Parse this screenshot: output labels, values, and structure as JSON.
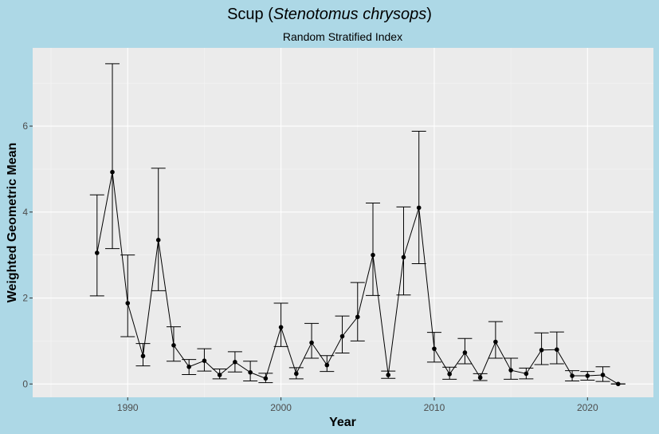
{
  "chart_data": {
    "type": "line",
    "title_main": "Scup",
    "title_species": "Stenotomus chrysops",
    "subtitle": "Random Stratified Index",
    "xlabel": "Year",
    "ylabel": "Weighted Geometric Mean",
    "xlim": [
      1983.8,
      2024.3
    ],
    "ylim": [
      -0.31,
      7.82
    ],
    "x_ticks": [
      1990,
      2000,
      2010,
      2020
    ],
    "x_tick_labels": [
      "1990",
      "2000",
      "2010",
      "2020"
    ],
    "y_ticks": [
      0,
      2,
      4,
      6
    ],
    "y_tick_labels": [
      "0",
      "2",
      "4",
      "6"
    ],
    "grid": true,
    "series": [
      {
        "name": "index",
        "points": [
          {
            "x": 1988,
            "y": 3.05,
            "lo": 2.05,
            "hi": 4.4
          },
          {
            "x": 1989,
            "y": 4.93,
            "lo": 3.15,
            "hi": 7.45
          },
          {
            "x": 1990,
            "y": 1.88,
            "lo": 1.1,
            "hi": 3.0
          },
          {
            "x": 1991,
            "y": 0.65,
            "lo": 0.42,
            "hi": 0.94
          },
          {
            "x": 1992,
            "y": 3.35,
            "lo": 2.17,
            "hi": 5.02
          },
          {
            "x": 1993,
            "y": 0.9,
            "lo": 0.53,
            "hi": 1.33
          },
          {
            "x": 1994,
            "y": 0.4,
            "lo": 0.22,
            "hi": 0.57
          },
          {
            "x": 1995,
            "y": 0.54,
            "lo": 0.3,
            "hi": 0.82
          },
          {
            "x": 1996,
            "y": 0.21,
            "lo": 0.12,
            "hi": 0.35
          },
          {
            "x": 1997,
            "y": 0.51,
            "lo": 0.28,
            "hi": 0.75
          },
          {
            "x": 1998,
            "y": 0.27,
            "lo": 0.07,
            "hi": 0.53
          },
          {
            "x": 1999,
            "y": 0.13,
            "lo": 0.03,
            "hi": 0.25
          },
          {
            "x": 2000,
            "y": 1.32,
            "lo": 0.87,
            "hi": 1.88
          },
          {
            "x": 2001,
            "y": 0.24,
            "lo": 0.12,
            "hi": 0.38
          },
          {
            "x": 2002,
            "y": 0.96,
            "lo": 0.6,
            "hi": 1.41
          },
          {
            "x": 2003,
            "y": 0.44,
            "lo": 0.29,
            "hi": 0.66
          },
          {
            "x": 2004,
            "y": 1.11,
            "lo": 0.72,
            "hi": 1.58
          },
          {
            "x": 2005,
            "y": 1.56,
            "lo": 1.0,
            "hi": 2.36
          },
          {
            "x": 2006,
            "y": 3.0,
            "lo": 2.06,
            "hi": 4.21
          },
          {
            "x": 2007,
            "y": 0.21,
            "lo": 0.13,
            "hi": 0.3
          },
          {
            "x": 2008,
            "y": 2.95,
            "lo": 2.07,
            "hi": 4.12
          },
          {
            "x": 2009,
            "y": 4.1,
            "lo": 2.8,
            "hi": 5.88
          },
          {
            "x": 2010,
            "y": 0.82,
            "lo": 0.51,
            "hi": 1.2
          },
          {
            "x": 2011,
            "y": 0.23,
            "lo": 0.11,
            "hi": 0.39
          },
          {
            "x": 2012,
            "y": 0.73,
            "lo": 0.47,
            "hi": 1.06
          },
          {
            "x": 2013,
            "y": 0.15,
            "lo": 0.08,
            "hi": 0.24
          },
          {
            "x": 2014,
            "y": 0.98,
            "lo": 0.6,
            "hi": 1.45
          },
          {
            "x": 2015,
            "y": 0.32,
            "lo": 0.11,
            "hi": 0.6
          },
          {
            "x": 2016,
            "y": 0.24,
            "lo": 0.12,
            "hi": 0.37
          },
          {
            "x": 2017,
            "y": 0.79,
            "lo": 0.45,
            "hi": 1.19
          },
          {
            "x": 2018,
            "y": 0.8,
            "lo": 0.47,
            "hi": 1.21
          },
          {
            "x": 2019,
            "y": 0.19,
            "lo": 0.07,
            "hi": 0.31
          },
          {
            "x": 2020,
            "y": 0.19,
            "lo": 0.09,
            "hi": 0.29
          },
          {
            "x": 2021,
            "y": 0.21,
            "lo": 0.06,
            "hi": 0.4
          },
          {
            "x": 2022,
            "y": 0.0,
            "lo": 0.0,
            "hi": 0.0
          }
        ]
      }
    ]
  }
}
